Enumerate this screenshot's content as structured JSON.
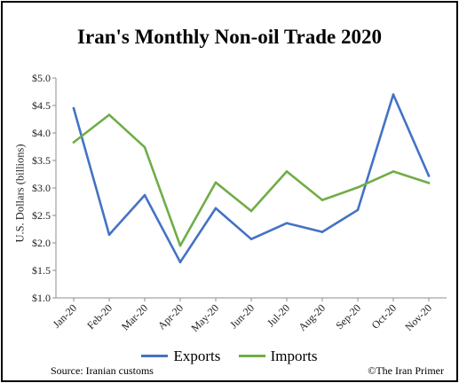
{
  "chart_data": {
    "type": "line",
    "title": "Iran's Monthly Non-oil Trade 2020",
    "ylabel": "U.S. Dollars (billions)",
    "xlabel": "",
    "categories": [
      "Jan-20",
      "Feb-20",
      "Mar-20",
      "Apr-20",
      "May-20",
      "Jun-20",
      "Jul-20",
      "Aug-20",
      "Sep-20",
      "Oct-20",
      "Nov-20"
    ],
    "ylim": [
      1.0,
      5.0
    ],
    "yticks": [
      "$1.0",
      "$1.5",
      "$2.0",
      "$2.5",
      "$3.0",
      "$3.5",
      "$4.0",
      "$4.5",
      "$5.0"
    ],
    "grid": false,
    "legend": "bottom",
    "series": [
      {
        "name": "Exports",
        "color": "#4472C4",
        "values": [
          4.45,
          2.15,
          2.87,
          1.65,
          2.63,
          2.07,
          2.36,
          2.2,
          2.6,
          4.7,
          3.22
        ]
      },
      {
        "name": "Imports",
        "color": "#70AD47",
        "values": [
          3.83,
          4.33,
          3.74,
          1.95,
          3.1,
          2.58,
          3.3,
          2.78,
          3.01,
          3.3,
          3.09
        ]
      }
    ]
  },
  "footer": {
    "source": "Source: Iranian customs",
    "credit": "©The Iran Primer"
  }
}
